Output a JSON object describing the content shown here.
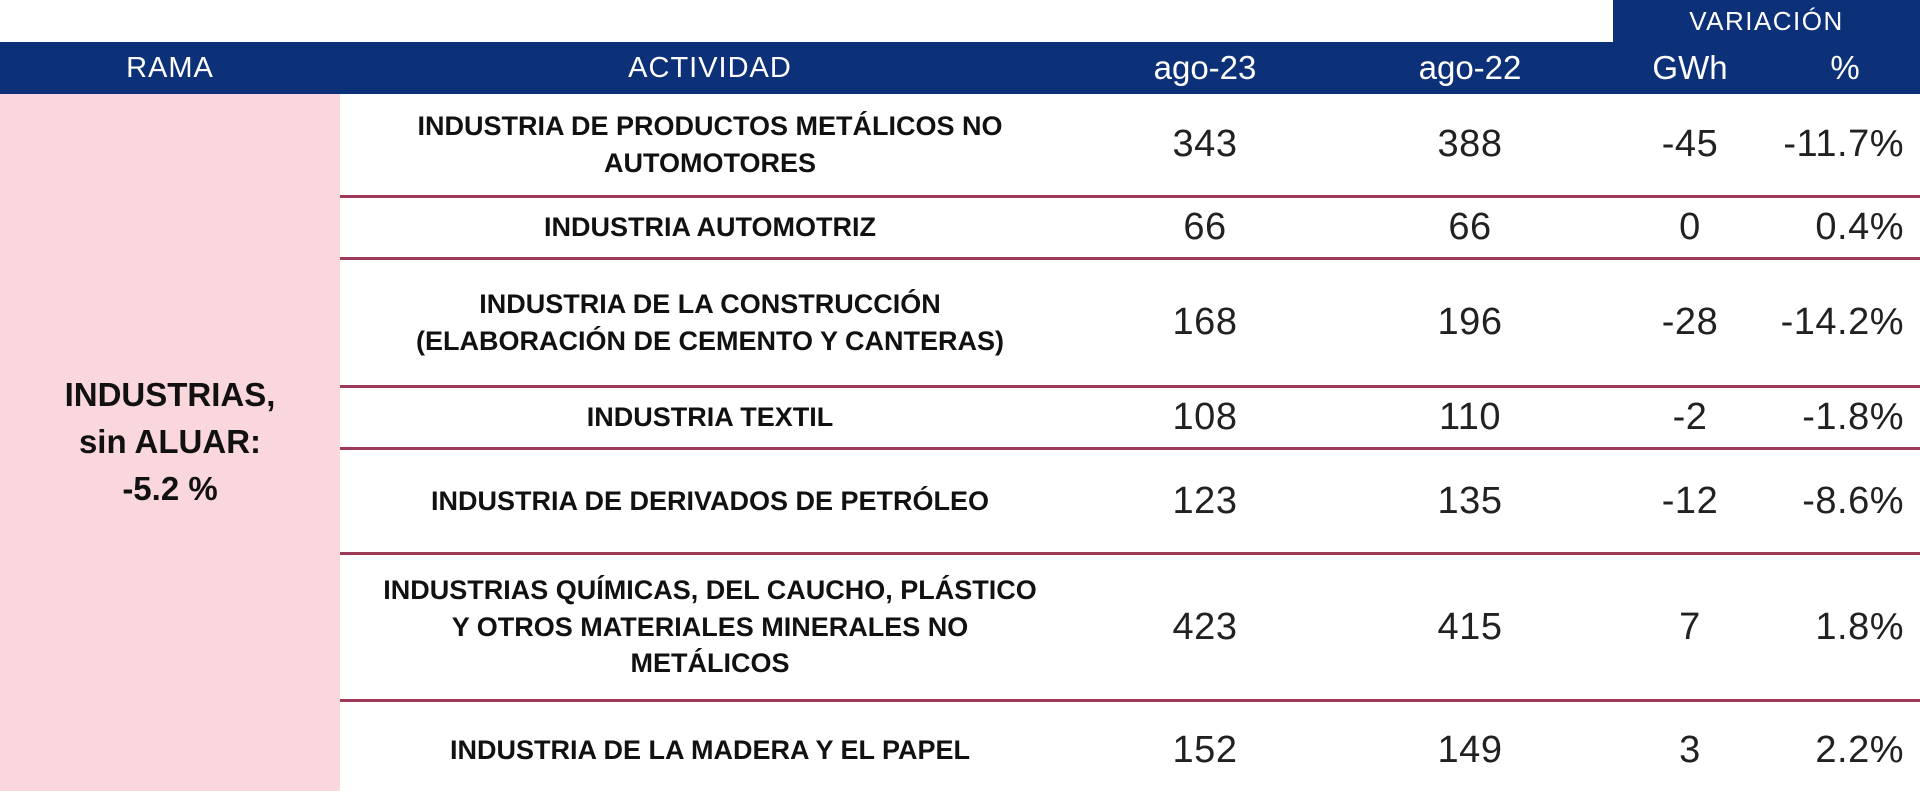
{
  "colors": {
    "header_blue": "#0d3178",
    "rama_pink": "#f9d7dc",
    "separator_red": "#9e3a58",
    "text_dark": "#111111"
  },
  "table": {
    "variacion_label": "VARIACIÓN",
    "headers": {
      "rama": "RAMA",
      "actividad": "ACTIVIDAD",
      "ago23": "ago-23",
      "ago22": "ago-22",
      "gwh": "GWh",
      "pct": "%"
    },
    "rama_group": {
      "label": "INDUSTRIAS,\nsin ALUAR:\n-5.2 %"
    },
    "rows": [
      {
        "actividad": "INDUSTRIA DE PRODUCTOS METÁLICOS NO\nAUTOMOTORES",
        "ago23": "343",
        "ago22": "388",
        "gwh": "-45",
        "pct": "-11.7%"
      },
      {
        "actividad": "INDUSTRIA AUTOMOTRIZ",
        "ago23": "66",
        "ago22": "66",
        "gwh": "0",
        "pct": "0.4%"
      },
      {
        "actividad": "INDUSTRIA DE LA CONSTRUCCIÓN\n(ELABORACIÓN DE CEMENTO Y CANTERAS)",
        "ago23": "168",
        "ago22": "196",
        "gwh": "-28",
        "pct": "-14.2%"
      },
      {
        "actividad": "INDUSTRIA TEXTIL",
        "ago23": "108",
        "ago22": "110",
        "gwh": "-2",
        "pct": "-1.8%"
      },
      {
        "actividad": "INDUSTRIA DE DERIVADOS DE PETRÓLEO",
        "ago23": "123",
        "ago22": "135",
        "gwh": "-12",
        "pct": "-8.6%"
      },
      {
        "actividad": "INDUSTRIAS QUÍMICAS, DEL CAUCHO, PLÁSTICO\nY OTROS MATERIALES MINERALES NO\nMETÁLICOS",
        "ago23": "423",
        "ago22": "415",
        "gwh": "7",
        "pct": "1.8%"
      },
      {
        "actividad": "INDUSTRIA DE LA MADERA Y EL PAPEL",
        "ago23": "152",
        "ago22": "149",
        "gwh": "3",
        "pct": "2.2%"
      }
    ]
  }
}
